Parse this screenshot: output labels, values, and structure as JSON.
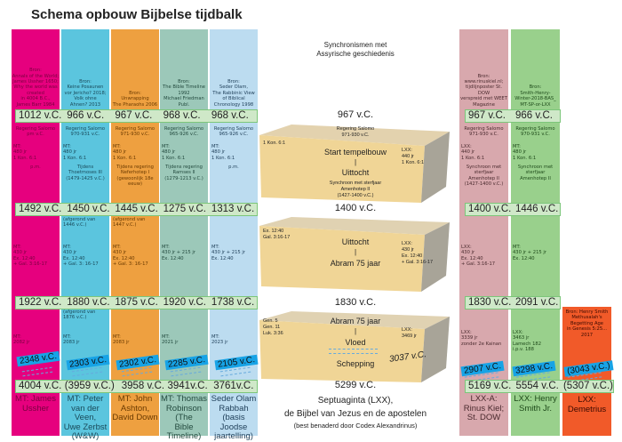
{
  "title": "Schema opbouw Bijbelse tijdbalk",
  "colors": {
    "blue_label": "#17a3e6",
    "date_bar": "#cfe8c8"
  },
  "columns": [
    {
      "color": "#e6007e",
      "text_color": "#7a0040",
      "source": "Bron:\nAnnals of the World;\nJames Ussher 1650;\nWhy the world was\ncreated\nin 4004 B.C.,\nJames Barr 1984",
      "d1": "1012 v.C.",
      "reign": "Regering Salomo\npm v.C.",
      "mt480": "MT:\n480 jr\n1 Kon. 6:1",
      "note2": "p.m.",
      "d2": "1492 v.C.",
      "after2": "",
      "mt430": "MT:\n430 jr\nEx. 12:40\n+ Gal. 3:16-17",
      "d3": "1922 v.C.",
      "after3": "",
      "mtyears": "MT:\n2082 jr",
      "flood": "2348 v.C.",
      "d4": "4004 v.C.",
      "label": "MT: James\nUssher"
    },
    {
      "color": "#5bc5de",
      "text_color": "#1a4a5a",
      "source": "Bron:\nKeine Posaunen\nvor Jericho? 2018;\nVolk ohne\nAhnen? 2013",
      "d1": "966 v.C.",
      "reign": "Regering Salomo\n970-931 v.C.",
      "mt480": "MT:\n480 jr\n1 Kon. 6:1",
      "note2": "Tijdens\nThoetmoses III\n(1479-1425 v.C.)",
      "d2": "1450 v.C.",
      "after2": "(afgerond van\n1446 v.C.)",
      "mt430": "MT:\n430 jr\nEx. 12:40\n+ Gal. 3: 16-17",
      "d3": "1880 v.C.",
      "after3": "(afgerond van\n1876 v.C.)",
      "mtyears": "MT:\n2083 jr",
      "flood": "2303 v.C.",
      "d4": "(3959 v.C.)",
      "label": "MT: Peter\nvan der Veen,\nUwe Zerbst\n(W&W)"
    },
    {
      "color": "#eea040",
      "text_color": "#6a3a00",
      "source": "Bron:\nUnwrapping\nThe Pharaohs 2006",
      "d1": "967 v.C.",
      "reign": "Regering Salomo\n971-930 v.C.",
      "mt480": "MT:\n480 jr\n1 Kon. 6:1",
      "note2": "Tijdens regering\nNeferhotep I\n(gewoonlijk 18e eeuw)",
      "d2": "1445 v.C.",
      "after2": "(afgerond van\n1447 v.C.)",
      "mt430": "MT:\n430 jr\nEx. 12:40\n+ Gal. 3: 16-17",
      "d3": "1875 v.C.",
      "after3": "",
      "mtyears": "MT:\n2083 jr",
      "flood": "2302 v.C.",
      "d4": "3958 v.C.",
      "label": "MT: John\nAshton,\nDavid Down"
    },
    {
      "color": "#9cc8b9",
      "text_color": "#234a3e",
      "source": "Bron:\nThe Bible Timeline\n1992\nMichael Friedman\nPubl.",
      "d1": "968 v.C.",
      "reign": "Regering Salomo\n965-926 v.C.",
      "mt480": "MT:\n480 jr\n1 Kon. 6:1",
      "note2": "Tijdens regering\nRamses II\n(1279-1213 v.C.)",
      "d2": "1275 v.C.",
      "after2": "",
      "mt430": "MT:\n430 jr + 215 jr\nEx. 12:40",
      "d3": "1920 v.C.",
      "after3": "",
      "mtyears": "MT:\n2021 jr",
      "flood": "2285 v.C.",
      "d4": "3941v.C.",
      "label": "MT: Thomas\nRobinson (The\nBible Timeline)"
    },
    {
      "color": "#bcdcf0",
      "text_color": "#1e3e58",
      "source": "Bron:\nSeder Olam,\nThe Rabbinic View\nof Biblical\nChronology 1998",
      "d1": "968 v.C.",
      "reign": "Regering Salomo\n965-926 v.C.",
      "mt480": "MT:\n480 jr\n1 Kon. 6:1",
      "note2": "p.m.",
      "d2": "1313 v.C.",
      "after2": "",
      "mt430": "MT:\n430 jr + 215 jr\nEx. 12:40",
      "d3": "1738 v.C.",
      "after3": "",
      "mtyears": "MT:\n2023 jr",
      "flood": "2105 v.C.",
      "d4": "3761v.C.",
      "label": "Seder Olam\nRabbah\n(basis Joodse\njaartelling)"
    }
  ],
  "right_columns": [
    {
      "color": "#d8a8ad",
      "text_color": "#4a2a2e",
      "source": "Bron:\nwww.rinuskiel.nl;\ntijdlijnposter St. DOW\nverspreid met WEET\nMagazine",
      "d1": "967 v.C.",
      "reign": "Regering Salomo\n971-930 v.C.",
      "mt480": "LXX:\n440 jr\n1 Kon. 6:1",
      "note2": "Synchroon met sterfjaar\nAmenhotep II\n(1427-1400 v.C.)",
      "d2": "1400 v.C.",
      "mt430": "LXX:\n430 jr\nEx. 12:40\n+ Gal. 3:16-17",
      "d3": "1830 v.C.",
      "mtyears": "LXX:\n3339 jr\nzonder 2e Kainan",
      "flood": "2907 v.C.",
      "d4": "5169 v.C.",
      "label": "LXX-A:\nRinus Kiel;\nSt. DOW"
    },
    {
      "color": "#99d08c",
      "text_color": "#1e4a1a",
      "source": "Bron:\nSmith-Henry-\nWinter-2018-BAS_\nMT-SP-or-LXX",
      "d1": "966 v.C.",
      "reign": "Regering Salomo\n970-931 v.C.",
      "mt480": "MT:\n480 jr\n1 Kon. 6:1",
      "note2": "Synchroon met sterfjaar\nAmenhotep II",
      "d2": "1446 v.C.",
      "mt430": "MT:\n430 jr + 215 jr\nEx. 12:40",
      "d3": "2091 v.C.",
      "mtyears": "LXX:\n3463 jr\nLamech 182\ni.p.v. 188",
      "flood": "3298 v.C.",
      "d4": "5554 v.C.",
      "label": "LXX: Henry\nSmith Jr."
    },
    {
      "color": "#f15a29",
      "text_color": "#3a0a00",
      "source": "Bron: Henry Smith\nMethusalah's\nBegetting Age\nin Genesis 5:25...\n2017",
      "flood": "(3043 v.C.)",
      "d4": "(5307 v.C.)",
      "label": "LXX:\nDemetrius"
    }
  ],
  "center": {
    "heading": "Synchronismen met\nAssyrische geschiedenis",
    "d1": "967 v.C.",
    "reign": "Regering Salomo\n971-930 v.C.",
    "ref1": "1 Kon. 6:1",
    "start": "Start tempelbouw",
    "lxx1": "LXX:\n440 jr\n1 Kon. 6:1",
    "sep": "|",
    "exodus": "Uittocht",
    "sync": "Synchroon met sterfjaar\nAmenhotep II\n(1427-1400 v.C.)",
    "d2": "1400 v.C.",
    "ref2": "Ex. 12:40\nGal. 3:16-17",
    "exodus2": "Uittocht",
    "abram": "Abram 75 jaar",
    "lxx2": "LXX:\n430 jr\nEx. 12:40\n+ Gal. 3:16-17",
    "d3": "1830 v.C.",
    "ref3": "Gen. 5\nGen. 11\nLuk. 3:36",
    "abram2": "Abram 75 jaar",
    "flood": "Vloed",
    "lxx3": "LXX:\n3469 jr",
    "flood_date": "3037 v.C.",
    "creation": "Schepping",
    "d4": "5299 v.C.",
    "caption1": "Septuaginta (LXX),",
    "caption2": "de Bijbel van Jezus en de apostelen",
    "caption3": "(best benaderd door Codex Alexandrinus)"
  }
}
